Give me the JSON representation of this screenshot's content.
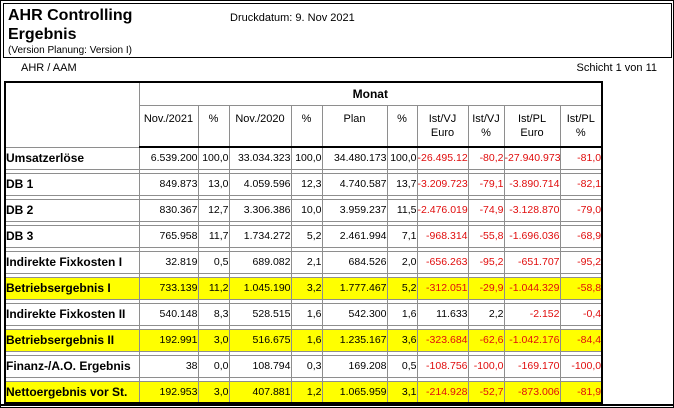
{
  "header": {
    "title_line1": "AHR Controlling",
    "title_line2": "Ergebnis",
    "subtitle": "(Version Planung: Version I)",
    "print_date": "Druckdatum: 9. Nov 2021"
  },
  "meta": {
    "unit": "AHR / AAM",
    "page_indicator": "Schicht 1 von 11"
  },
  "table": {
    "group_header": "Monat",
    "columns": [
      {
        "label": "Nov./2021",
        "hatch": false
      },
      {
        "label": "%",
        "hatch": true
      },
      {
        "label": "Nov./2020",
        "hatch": false
      },
      {
        "label": "%",
        "hatch": true
      },
      {
        "label": "Plan",
        "hatch": false
      },
      {
        "label": "%",
        "hatch": true
      },
      {
        "label": "Ist/VJ\nEuro",
        "hatch": false
      },
      {
        "label": "Ist/VJ\n%",
        "hatch": false
      },
      {
        "label": "Ist/PL\nEuro",
        "hatch": false
      },
      {
        "label": "Ist/PL\n%",
        "hatch": false
      }
    ],
    "rows": [
      {
        "label": "Umsatzerlöse",
        "highlight": false,
        "values": [
          "6.539.200",
          "100,0",
          "33.034.323",
          "100,0",
          "34.480.173",
          "100,0",
          "-26.495.122",
          "-80,2",
          "-27.940.973",
          "-81,0"
        ]
      },
      {
        "label": "DB 1",
        "highlight": false,
        "values": [
          "849.873",
          "13,0",
          "4.059.596",
          "12,3",
          "4.740.587",
          "13,7",
          "-3.209.723",
          "-79,1",
          "-3.890.714",
          "-82,1"
        ]
      },
      {
        "label": "DB 2",
        "highlight": false,
        "values": [
          "830.367",
          "12,7",
          "3.306.386",
          "10,0",
          "3.959.237",
          "11,5",
          "-2.476.019",
          "-74,9",
          "-3.128.870",
          "-79,0"
        ]
      },
      {
        "label": "DB 3",
        "highlight": false,
        "values": [
          "765.958",
          "11,7",
          "1.734.272",
          "5,2",
          "2.461.994",
          "7,1",
          "-968.314",
          "-55,8",
          "-1.696.036",
          "-68,9"
        ]
      },
      {
        "label": "Indirekte Fixkosten I",
        "highlight": false,
        "values": [
          "32.819",
          "0,5",
          "689.082",
          "2,1",
          "684.526",
          "2,0",
          "-656.263",
          "-95,2",
          "-651.707",
          "-95,2"
        ]
      },
      {
        "label": "Betriebsergebnis I",
        "highlight": true,
        "values": [
          "733.139",
          "11,2",
          "1.045.190",
          "3,2",
          "1.777.467",
          "5,2",
          "-312.051",
          "-29,9",
          "-1.044.329",
          "-58,8"
        ]
      },
      {
        "label": "Indirekte Fixkosten II",
        "highlight": false,
        "values": [
          "540.148",
          "8,3",
          "528.515",
          "1,6",
          "542.300",
          "1,6",
          "11.633",
          "2,2",
          "-2.152",
          "-0,4"
        ]
      },
      {
        "label": "Betriebsergebnis II",
        "highlight": true,
        "values": [
          "192.991",
          "3,0",
          "516.675",
          "1,6",
          "1.235.167",
          "3,6",
          "-323.684",
          "-62,6",
          "-1.042.176",
          "-84,4"
        ]
      },
      {
        "label": "Finanz-/A.O. Ergebnis",
        "highlight": false,
        "values": [
          "38",
          "0,0",
          "108.794",
          "0,3",
          "169.208",
          "0,5",
          "-108.756",
          "-100,0",
          "-169.170",
          "-100,0"
        ]
      },
      {
        "label": "Nettoergebnis vor St.",
        "highlight": true,
        "values": [
          "192.953",
          "3,0",
          "407.881",
          "1,2",
          "1.065.959",
          "3,1",
          "-214.928",
          "-52,7",
          "-873.006",
          "-81,9"
        ]
      }
    ]
  },
  "colors": {
    "highlight_row": "#ffff00",
    "negative_value": "#e00d0d"
  }
}
